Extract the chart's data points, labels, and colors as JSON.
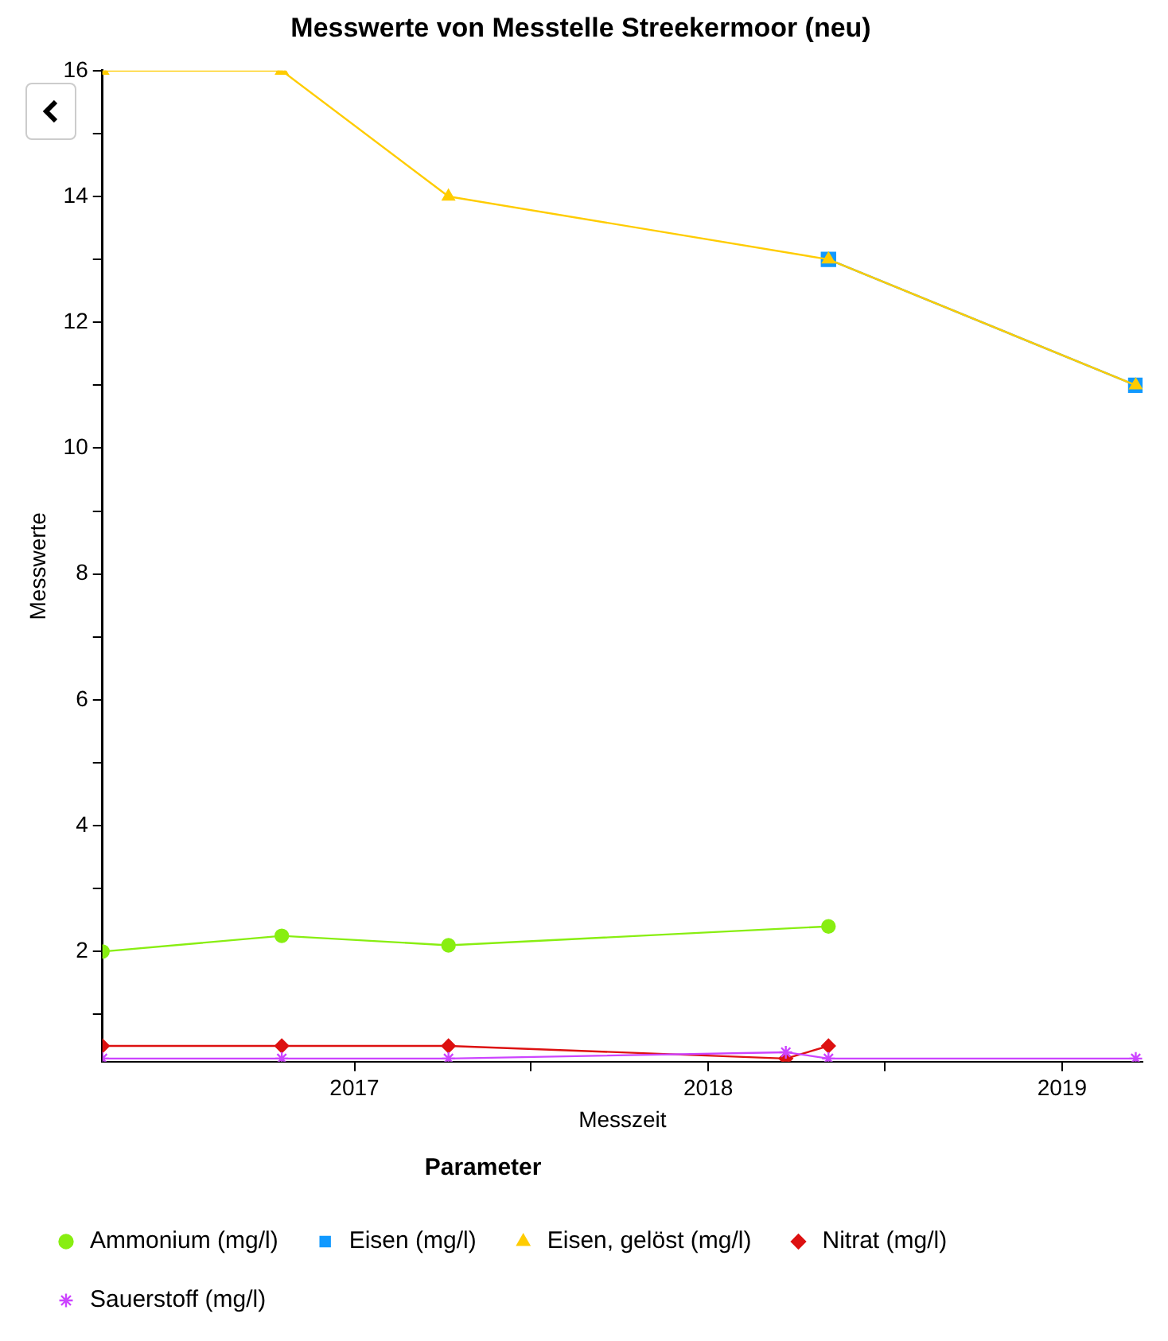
{
  "chart_data": {
    "type": "line",
    "title": "Messwerte von Messtelle Streekermoor (neu)",
    "xlabel": "Messzeit",
    "ylabel": "Messwerte",
    "legend_title": "Parameter",
    "legend": "bottom",
    "grid": false,
    "xlim": [
      "2016-04-16",
      "2019-03-25"
    ],
    "xticks": [
      {
        "value": "2017-01-01",
        "label": "2017"
      },
      {
        "value": "2017-07-02",
        "label": null
      },
      {
        "value": "2018-01-01",
        "label": "2018"
      },
      {
        "value": "2018-07-02",
        "label": null
      },
      {
        "value": "2019-01-01",
        "label": "2019"
      }
    ],
    "ylim": [
      0.25,
      16
    ],
    "yticks": [
      {
        "value": 1,
        "label": null
      },
      2,
      {
        "value": 3,
        "label": null
      },
      4,
      {
        "value": 5,
        "label": null
      },
      6,
      {
        "value": 7,
        "label": null
      },
      8,
      {
        "value": 9,
        "label": null
      },
      10,
      {
        "value": 11,
        "label": null
      },
      12,
      {
        "value": 13,
        "label": null
      },
      14,
      {
        "value": 15,
        "label": null
      },
      16
    ],
    "series": [
      {
        "name": "Ammonium (mg/l)",
        "color": "#88ee11",
        "marker": "circle",
        "x": [
          "2016-04-16",
          "2016-10-18",
          "2017-04-08",
          "2018-05-05"
        ],
        "values": [
          2.0,
          2.25,
          2.1,
          2.4
        ]
      },
      {
        "name": "Eisen (mg/l)",
        "color": "#1199ff",
        "marker": "square",
        "x": [
          "2018-05-05",
          "2019-03-18"
        ],
        "values": [
          13,
          11
        ]
      },
      {
        "name": "Eisen, gelöst (mg/l)",
        "color": "#ffcc00",
        "marker": "triangle",
        "x": [
          "2016-04-16",
          "2016-10-18",
          "2017-04-08",
          "2018-05-05",
          "2019-03-18"
        ],
        "values": [
          16,
          16,
          14,
          13,
          11
        ]
      },
      {
        "name": "Nitrat (mg/l)",
        "color": "#dd1111",
        "marker": "diamond",
        "x": [
          "2016-04-16",
          "2016-10-18",
          "2017-04-08",
          "2018-03-22",
          "2018-05-05"
        ],
        "values": [
          0.5,
          0.5,
          0.5,
          0.3,
          0.5
        ]
      },
      {
        "name": "Sauerstoff (mg/l)",
        "color": "#cc44ff",
        "marker": "cross",
        "x": [
          "2016-04-16",
          "2016-10-18",
          "2017-04-08",
          "2018-03-22",
          "2018-05-05",
          "2019-03-18"
        ],
        "values": [
          0.3,
          0.3,
          0.3,
          0.4,
          0.3,
          0.3
        ]
      }
    ]
  }
}
